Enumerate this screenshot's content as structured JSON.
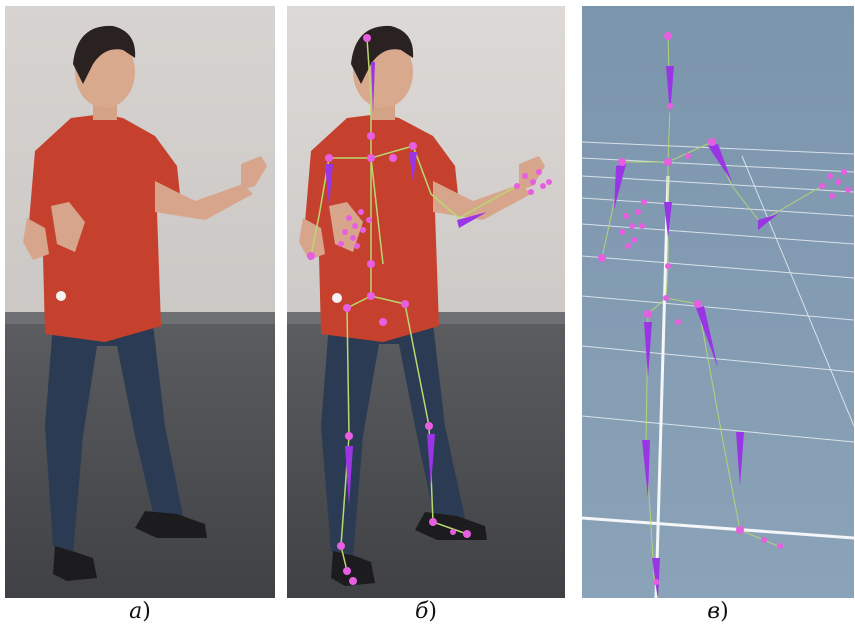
{
  "panels": [
    {
      "id": "a",
      "caption_letter": "а",
      "caption_paren": ")"
    },
    {
      "id": "b",
      "caption_letter": "б",
      "caption_paren": ")"
    },
    {
      "id": "c",
      "caption_letter": "в",
      "caption_paren": ")"
    }
  ],
  "colors": {
    "wall": "#d6d2cf",
    "floor": "#4b4d50",
    "shirt": "#c9422e",
    "jeans": "#2d3c55",
    "skin": "#d8a98f",
    "hair": "#2a2220",
    "joint": "#e75fe0",
    "bone": "#b9d870",
    "bone_purple": "#9a35e6",
    "viewport_bg": "#7f9ab1",
    "grid": "#e8eef4"
  }
}
